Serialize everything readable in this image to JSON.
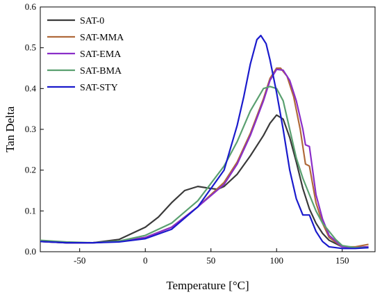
{
  "chart_data": {
    "type": "line",
    "title": "",
    "xlabel": "Temperature [°C]",
    "ylabel": "Tan Delta",
    "xlim": [
      -80,
      175
    ],
    "ylim": [
      0,
      0.6
    ],
    "xticks": [
      -50,
      0,
      50,
      100,
      150
    ],
    "yticks": [
      0.0,
      0.1,
      0.2,
      0.3,
      0.4,
      0.5,
      0.6
    ],
    "grid": false,
    "legend_position": "top-left",
    "series": [
      {
        "name": "SAT-0",
        "color": "#3a3a3a",
        "x": [
          -80,
          -60,
          -40,
          -20,
          0,
          10,
          20,
          30,
          40,
          50,
          55,
          60,
          70,
          80,
          90,
          95,
          100,
          105,
          110,
          115,
          120,
          125,
          130,
          135,
          140,
          150,
          160,
          170
        ],
        "y": [
          0.025,
          0.022,
          0.022,
          0.03,
          0.06,
          0.085,
          0.12,
          0.15,
          0.16,
          0.155,
          0.153,
          0.16,
          0.19,
          0.235,
          0.285,
          0.315,
          0.335,
          0.325,
          0.28,
          0.22,
          0.155,
          0.105,
          0.07,
          0.045,
          0.028,
          0.012,
          0.01,
          0.012
        ]
      },
      {
        "name": "SAT-MMA",
        "color": "#b06a3a",
        "x": [
          -80,
          -60,
          -40,
          -20,
          0,
          20,
          40,
          60,
          70,
          80,
          90,
          95,
          100,
          103,
          108,
          113,
          118,
          122,
          125,
          130,
          135,
          140,
          150,
          160,
          170
        ],
        "y": [
          0.025,
          0.022,
          0.022,
          0.025,
          0.035,
          0.06,
          0.11,
          0.17,
          0.22,
          0.29,
          0.375,
          0.425,
          0.45,
          0.45,
          0.43,
          0.38,
          0.3,
          0.215,
          0.21,
          0.12,
          0.07,
          0.035,
          0.012,
          0.012,
          0.018
        ]
      },
      {
        "name": "SAT-EMA",
        "color": "#8a2ec8",
        "x": [
          -80,
          -60,
          -40,
          -20,
          0,
          20,
          40,
          60,
          70,
          80,
          90,
          95,
          100,
          105,
          110,
          115,
          120,
          122,
          125,
          130,
          135,
          140,
          150,
          160,
          170
        ],
        "y": [
          0.025,
          0.022,
          0.022,
          0.025,
          0.035,
          0.06,
          0.11,
          0.165,
          0.215,
          0.285,
          0.37,
          0.42,
          0.447,
          0.445,
          0.42,
          0.37,
          0.3,
          0.262,
          0.258,
          0.14,
          0.08,
          0.04,
          0.012,
          0.01,
          0.012
        ]
      },
      {
        "name": "SAT-BMA",
        "color": "#5aa070",
        "x": [
          -80,
          -60,
          -40,
          -20,
          0,
          20,
          40,
          60,
          70,
          80,
          90,
          95,
          100,
          105,
          110,
          115,
          120,
          125,
          130,
          135,
          140,
          145,
          150,
          160,
          170
        ],
        "y": [
          0.028,
          0.024,
          0.022,
          0.026,
          0.04,
          0.07,
          0.125,
          0.21,
          0.27,
          0.345,
          0.4,
          0.405,
          0.4,
          0.37,
          0.3,
          0.23,
          0.18,
          0.14,
          0.1,
          0.07,
          0.05,
          0.03,
          0.015,
          0.01,
          0.01
        ]
      },
      {
        "name": "SAT-STY",
        "color": "#1a1acc",
        "x": [
          -80,
          -60,
          -40,
          -20,
          0,
          20,
          40,
          60,
          70,
          75,
          80,
          85,
          88,
          92,
          95,
          100,
          105,
          110,
          115,
          120,
          125,
          130,
          135,
          140,
          150,
          160,
          170
        ],
        "y": [
          0.025,
          0.022,
          0.022,
          0.024,
          0.032,
          0.055,
          0.11,
          0.2,
          0.31,
          0.38,
          0.46,
          0.52,
          0.53,
          0.51,
          0.47,
          0.39,
          0.3,
          0.2,
          0.13,
          0.09,
          0.09,
          0.05,
          0.025,
          0.012,
          0.008,
          0.008,
          0.01
        ]
      }
    ]
  }
}
